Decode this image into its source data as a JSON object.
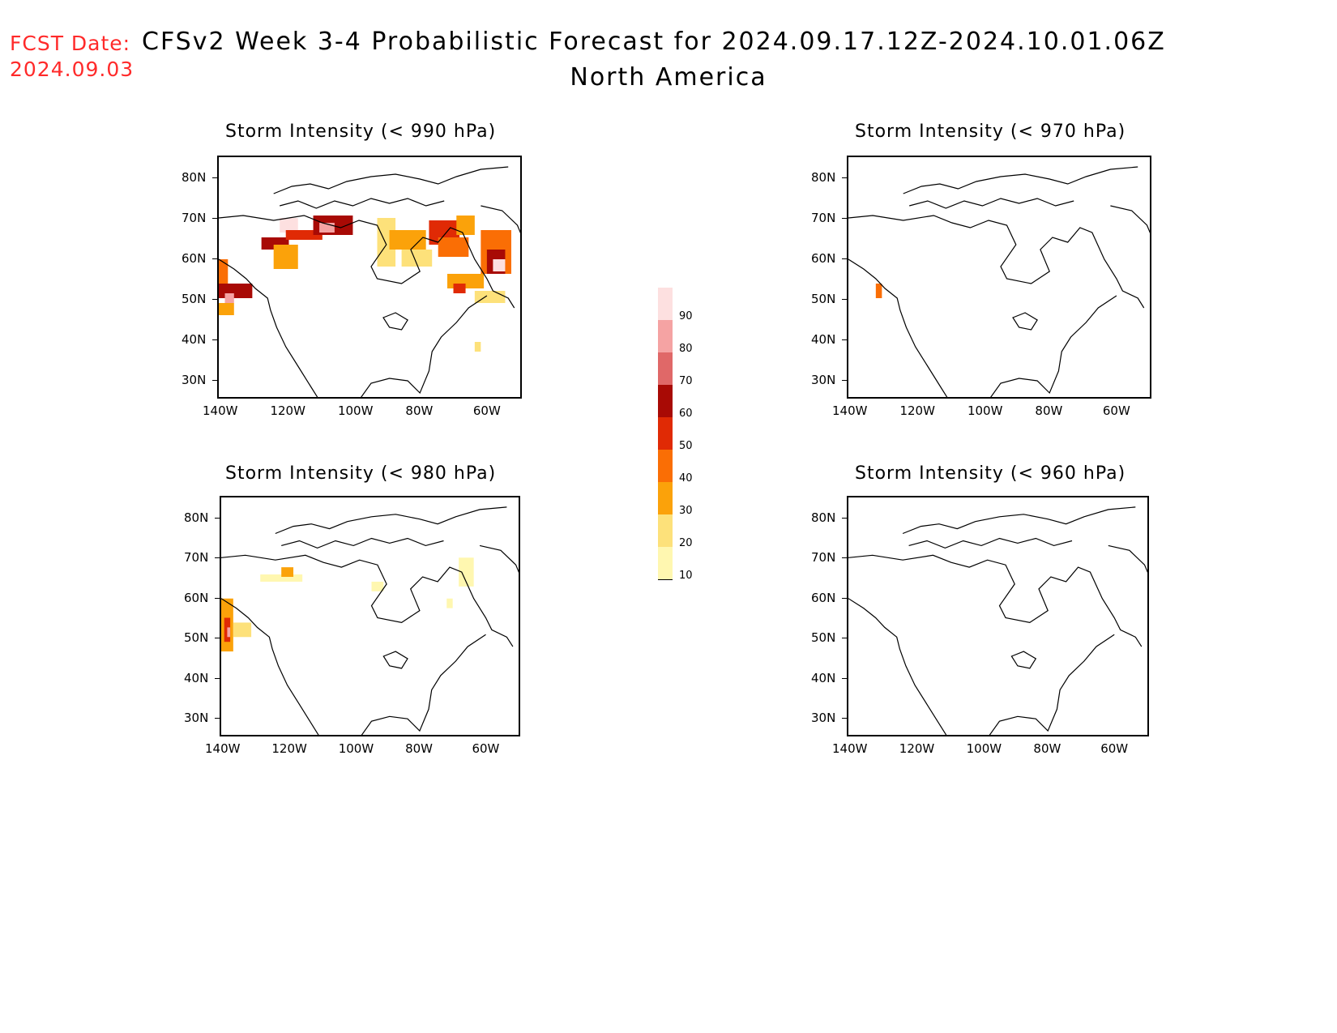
{
  "header": {
    "fcst_label": "FCST Date:",
    "fcst_date": "2024.09.03",
    "title": "CFSv2 Week 3-4 Probabilistic Forecast for 2024.09.17.12Z-2024.10.01.06Z",
    "subtitle": "North America"
  },
  "axes": {
    "lat_labels": [
      "80N",
      "70N",
      "60N",
      "50N",
      "40N",
      "30N"
    ],
    "lon_labels": [
      "140W",
      "120W",
      "100W",
      "80W",
      "60W"
    ]
  },
  "colorbar": {
    "levels": [
      "10",
      "20",
      "30",
      "40",
      "50",
      "60",
      "70",
      "80",
      "90"
    ],
    "colors": [
      "#fff7b0",
      "#fde17a",
      "#fba20a",
      "#fa6e05",
      "#e02a05",
      "#a80a05",
      "#e06868",
      "#f5a3a3",
      "#fde0e0"
    ]
  },
  "panels": [
    {
      "id": "p990",
      "title": "Storm Intensity (< 990 hPa)"
    },
    {
      "id": "p970",
      "title": "Storm Intensity (< 970 hPa)"
    },
    {
      "id": "p980",
      "title": "Storm Intensity (< 980 hPa)"
    },
    {
      "id": "p960",
      "title": "Storm Intensity (< 960 hPa)"
    }
  ]
}
